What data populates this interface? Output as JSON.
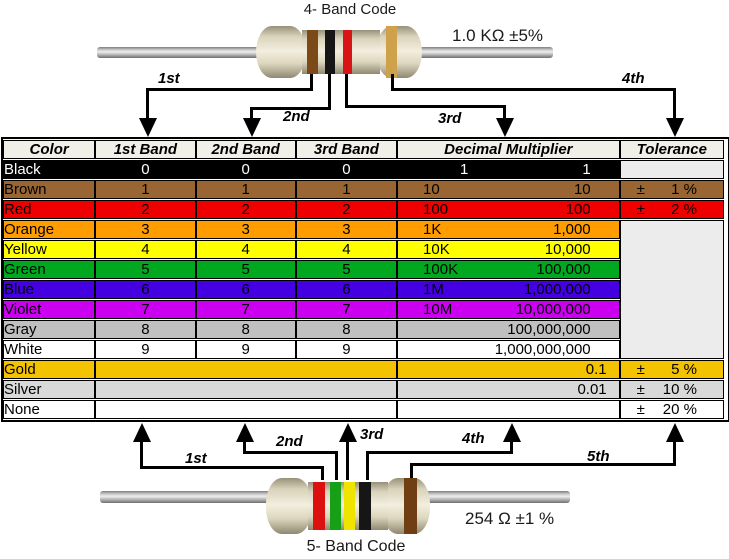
{
  "four_band": {
    "title": "4- Band Code",
    "value_label": "1.0 KΩ  ±5%",
    "arrow_labels": [
      "1st",
      "2nd",
      "3rd",
      "4th"
    ],
    "bands": [
      {
        "name": "brown",
        "color": "#7c4a18"
      },
      {
        "name": "black",
        "color": "#161616"
      },
      {
        "name": "red",
        "color": "#d81414"
      },
      {
        "name": "gold",
        "color": "#cfa14a"
      }
    ]
  },
  "five_band": {
    "title": "5- Band Code",
    "value_label": "254 Ω  ±1 %",
    "arrow_labels": [
      "1st",
      "2nd",
      "3rd",
      "4th",
      "5th"
    ],
    "bands": [
      {
        "name": "red",
        "color": "#dd1010"
      },
      {
        "name": "green",
        "color": "#17a017"
      },
      {
        "name": "yellow",
        "color": "#efe400"
      },
      {
        "name": "black",
        "color": "#161616"
      },
      {
        "name": "brown",
        "color": "#6f3e12"
      }
    ]
  },
  "table": {
    "headers": [
      "Color",
      "1st Band",
      "2nd Band",
      "3rd Band",
      "Decimal Multiplier",
      "Tolerance"
    ],
    "empty_tolerance_bg": "#ececec",
    "rows": [
      {
        "name": "Black",
        "bg": "#000000",
        "fg": "#ffffff",
        "bands": [
          "0",
          "0",
          "0"
        ],
        "mult_short": "1",
        "mult_long": "1",
        "tol": null,
        "tol_cell": "gray"
      },
      {
        "name": "Brown",
        "bg": "#996633",
        "fg": "#000000",
        "bands": [
          "1",
          "1",
          "1"
        ],
        "mult_short": "10",
        "mult_long": "10",
        "tol": {
          "sign": "±",
          "value": "1 %"
        },
        "tol_cell": "own"
      },
      {
        "name": "Red",
        "bg": "#ee0000",
        "fg": "#000000",
        "bands": [
          "2",
          "2",
          "2"
        ],
        "mult_short": "100",
        "mult_long": "100",
        "tol": {
          "sign": "±",
          "value": "2 %"
        },
        "tol_cell": "own"
      },
      {
        "name": "Orange",
        "bg": "#ff9c00",
        "fg": "#000000",
        "bands": [
          "3",
          "3",
          "3"
        ],
        "mult_short": "1K",
        "mult_long": "1,000",
        "tol": null,
        "tol_cell": "gray-span"
      },
      {
        "name": "Yellow",
        "bg": "#ffff00",
        "fg": "#000000",
        "bands": [
          "4",
          "4",
          "4"
        ],
        "mult_short": "10K",
        "mult_long": "10,000",
        "tol": null,
        "tol_cell": "skip"
      },
      {
        "name": "Green",
        "bg": "#00a820",
        "fg": "#000000",
        "bands": [
          "5",
          "5",
          "5"
        ],
        "mult_short": "100K",
        "mult_long": "100,000",
        "tol": null,
        "tol_cell": "skip"
      },
      {
        "name": "Blue",
        "bg": "#4400e0",
        "fg": "#000000",
        "bands": [
          "6",
          "6",
          "6"
        ],
        "mult_short": "1M",
        "mult_long": "1,000,000",
        "tol": null,
        "tol_cell": "skip"
      },
      {
        "name": "Violet",
        "bg": "#cc00f0",
        "fg": "#000000",
        "bands": [
          "7",
          "7",
          "7"
        ],
        "mult_short": "10M",
        "mult_long": "10,000,000",
        "tol": null,
        "tol_cell": "skip"
      },
      {
        "name": "Gray",
        "bg": "#c0c0c0",
        "fg": "#000000",
        "bands": [
          "8",
          "8",
          "8"
        ],
        "mult_short": "",
        "mult_long": "100,000,000",
        "tol": null,
        "tol_cell": "skip"
      },
      {
        "name": "White",
        "bg": "#ffffff",
        "fg": "#000000",
        "bands": [
          "9",
          "9",
          "9"
        ],
        "mult_short": "",
        "mult_long": "1,000,000,000",
        "tol": null,
        "tol_cell": "skip"
      },
      {
        "name": "Gold",
        "bg": "#f4c300",
        "fg": "#000000",
        "bands_merged": true,
        "mult_short": "",
        "mult_long": "0.1",
        "tol": {
          "sign": "±",
          "value": "5 %"
        },
        "tol_cell": "own"
      },
      {
        "name": "Silver",
        "bg": "#d9d9d9",
        "fg": "#000000",
        "bands_merged": true,
        "mult_short": "",
        "mult_long": "0.01",
        "tol": {
          "sign": "±",
          "value": "10 %"
        },
        "tol_cell": "own"
      },
      {
        "name": "None",
        "bg": "#ffffff",
        "fg": "#000000",
        "bands_merged": true,
        "mult_short": "",
        "mult_long": "",
        "tol": {
          "sign": "±",
          "value": "20 %"
        },
        "tol_cell": "own"
      }
    ]
  }
}
